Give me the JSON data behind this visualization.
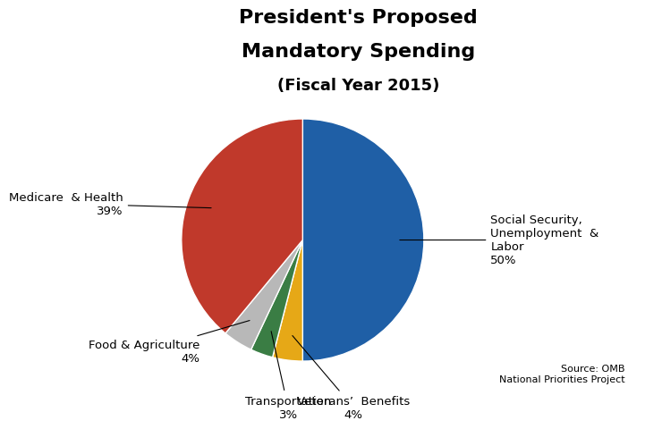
{
  "title_line1": "President's Proposed",
  "title_line2": "Mandatory Spending",
  "title_line3": "(Fiscal Year 2015)",
  "slices": [
    {
      "label": "Social Security,\nUnemployment  &\nLabor\n50%",
      "value": 50,
      "color": "#1f5fa6"
    },
    {
      "label": "Veterans’  Benefits\n4%",
      "value": 4,
      "color": "#e6a817"
    },
    {
      "label": "Transportation\n3%",
      "value": 3,
      "color": "#3a7d44"
    },
    {
      "label": "Food & Agriculture\n4%",
      "value": 4,
      "color": "#b8b8b8"
    },
    {
      "label": "Medicare  & Health\n39%",
      "value": 39,
      "color": "#c0392b"
    }
  ],
  "source_text": "Source: OMB\nNational Priorities Project",
  "bg_color": "#ffffff",
  "startangle": 90,
  "label_fontsize": 9.5,
  "title_fontsize_large": 16,
  "title_fontsize_small": 13
}
